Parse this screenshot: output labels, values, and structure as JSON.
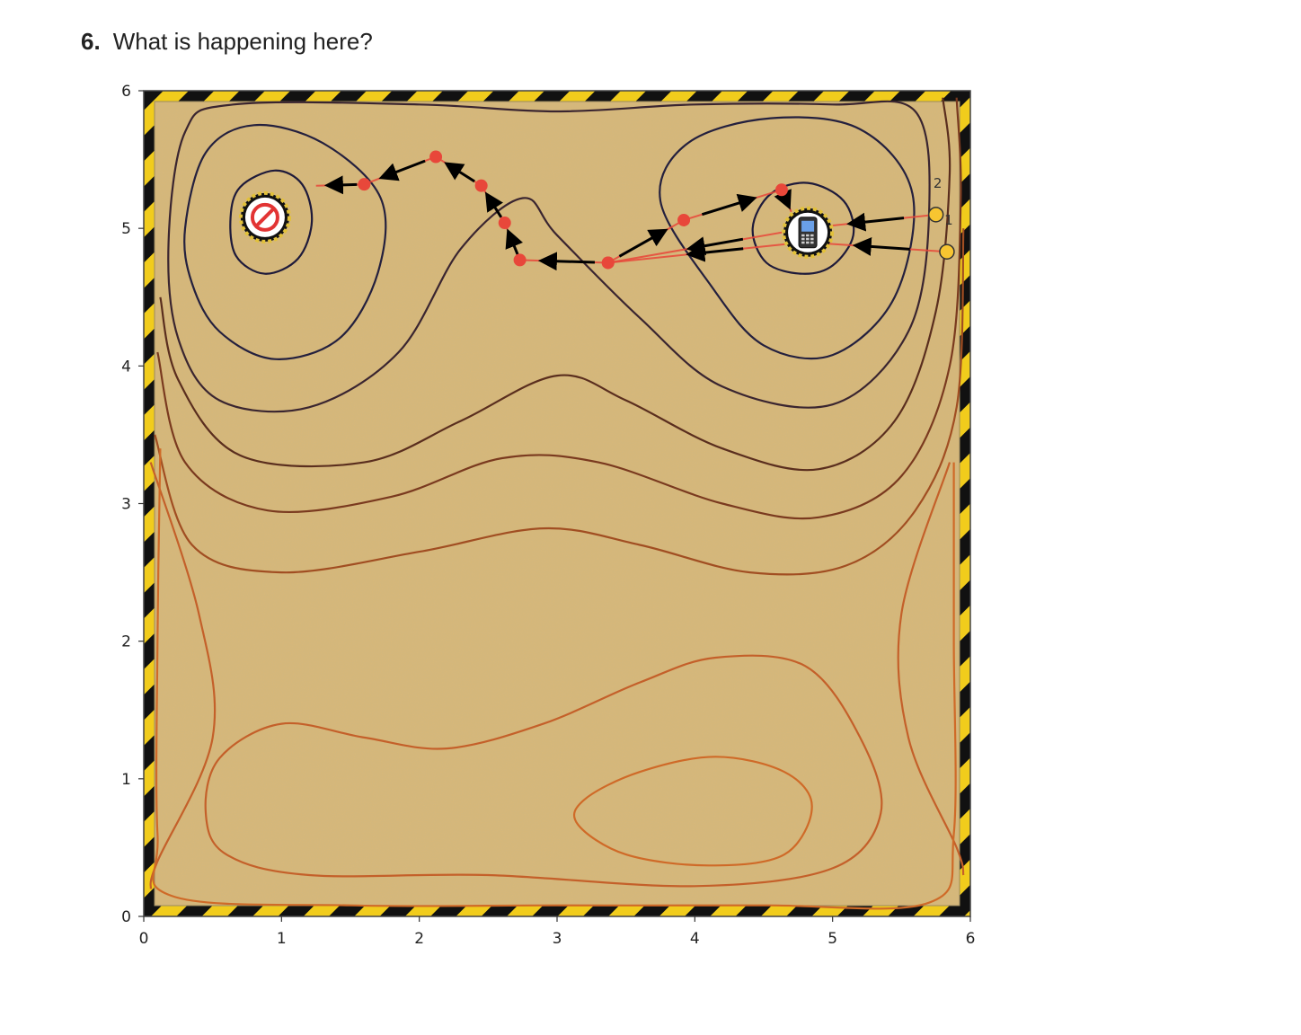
{
  "question": {
    "number": "6.",
    "text": "What is happening here?"
  },
  "chart_data": {
    "type": "contour",
    "title": "",
    "xlabel": "",
    "ylabel": "",
    "xlim": [
      0,
      6
    ],
    "ylim": [
      0,
      6
    ],
    "xticks": [
      "0",
      "1",
      "2",
      "3",
      "4",
      "5",
      "6"
    ],
    "yticks": [
      "0",
      "1",
      "2",
      "3",
      "4",
      "5",
      "6"
    ],
    "background": "sand texture with yellow/black hazard-striped border",
    "colors": {
      "dark": "#1e1a3a",
      "mid": "#5a2e1e",
      "light": "#cf6a28",
      "path": "#e8473a",
      "start": "#f7c531",
      "arrow": "#000000"
    },
    "markers": [
      {
        "name": "no-entry-sign",
        "icon": "no-entry-icon",
        "x": 0.88,
        "y": 5.08
      },
      {
        "name": "mobile-phone",
        "icon": "phone-icon",
        "x": 4.82,
        "y": 4.97
      }
    ],
    "start_points": [
      {
        "label": "2",
        "x": 5.75,
        "y": 5.1
      },
      {
        "label": "1",
        "x": 5.83,
        "y": 4.83
      }
    ],
    "paths": [
      {
        "name": "path-1",
        "points": [
          [
            5.83,
            4.83
          ],
          [
            4.8,
            4.9
          ],
          [
            3.37,
            4.75
          ],
          [
            2.73,
            4.77
          ],
          [
            2.62,
            5.04
          ],
          [
            2.45,
            5.31
          ],
          [
            2.12,
            5.52
          ],
          [
            1.6,
            5.32
          ],
          [
            1.25,
            5.31
          ]
        ]
      },
      {
        "name": "path-2",
        "points": [
          [
            5.75,
            5.1
          ],
          [
            4.8,
            5.0
          ],
          [
            3.37,
            4.75
          ],
          [
            3.92,
            5.06
          ],
          [
            4.63,
            5.28
          ],
          [
            4.7,
            5.12
          ]
        ]
      }
    ],
    "contour_levels": [
      {
        "color": "#1e1a3a",
        "groups": [
          [
            [
              [
                0.63,
                5.08
              ],
              [
                0.7,
                5.3
              ],
              [
                0.95,
                5.42
              ],
              [
                1.15,
                5.32
              ],
              [
                1.22,
                5.05
              ],
              [
                1.12,
                4.78
              ],
              [
                0.88,
                4.67
              ],
              [
                0.67,
                4.8
              ]
            ]
          ],
          [
            [
              [
                4.42,
                5.0
              ],
              [
                4.55,
                5.25
              ],
              [
                4.82,
                5.33
              ],
              [
                5.08,
                5.2
              ],
              [
                5.15,
                4.95
              ],
              [
                5.0,
                4.73
              ],
              [
                4.78,
                4.67
              ],
              [
                4.52,
                4.75
              ]
            ]
          ]
        ]
      },
      {
        "color": "#24203e",
        "groups": [
          [
            [
              [
                0.3,
                5.0
              ],
              [
                0.45,
                5.55
              ],
              [
                0.8,
                5.75
              ],
              [
                1.3,
                5.62
              ],
              [
                1.72,
                5.22
              ],
              [
                1.7,
                4.68
              ],
              [
                1.42,
                4.2
              ],
              [
                0.95,
                4.05
              ],
              [
                0.55,
                4.25
              ],
              [
                0.35,
                4.6
              ]
            ]
          ],
          [
            [
              [
                3.75,
                5.2
              ],
              [
                3.95,
                5.62
              ],
              [
                4.55,
                5.8
              ],
              [
                5.2,
                5.72
              ],
              [
                5.58,
                5.25
              ],
              [
                5.45,
                4.5
              ],
              [
                5.0,
                4.08
              ],
              [
                4.5,
                4.15
              ],
              [
                4.12,
                4.58
              ]
            ]
          ]
        ]
      },
      {
        "color": "#3a2530",
        "groups": [
          [
            [
              [
                0.18,
                4.9
              ],
              [
                0.3,
                5.7
              ],
              [
                0.65,
                5.9
              ],
              [
                2.0,
                5.9
              ],
              [
                3.0,
                5.85
              ],
              [
                4.0,
                5.9
              ],
              [
                5.0,
                5.9
              ],
              [
                5.6,
                5.85
              ],
              [
                5.7,
                5.1
              ],
              [
                5.55,
                4.25
              ],
              [
                5.0,
                3.72
              ],
              [
                4.2,
                3.85
              ],
              [
                3.6,
                4.35
              ],
              [
                3.0,
                4.95
              ],
              [
                2.75,
                5.22
              ],
              [
                2.3,
                4.85
              ],
              [
                1.85,
                4.1
              ],
              [
                1.2,
                3.7
              ],
              [
                0.55,
                3.75
              ],
              [
                0.25,
                4.2
              ]
            ]
          ]
        ]
      },
      {
        "color": "#5a2e1e",
        "groups": [
          [
            [
              [
                0.12,
                4.5
              ],
              [
                0.25,
                3.9
              ],
              [
                0.7,
                3.35
              ],
              [
                1.6,
                3.3
              ],
              [
                2.3,
                3.6
              ],
              [
                3.0,
                3.93
              ],
              [
                3.5,
                3.75
              ],
              [
                4.2,
                3.4
              ],
              [
                4.9,
                3.25
              ],
              [
                5.45,
                3.6
              ],
              [
                5.75,
                4.4
              ],
              [
                5.85,
                5.4
              ],
              [
                5.8,
                5.95
              ]
            ]
          ]
        ]
      },
      {
        "color": "#7a3a1f",
        "groups": [
          [
            [
              [
                0.1,
                4.1
              ],
              [
                0.3,
                3.3
              ],
              [
                0.9,
                2.95
              ],
              [
                1.8,
                3.05
              ],
              [
                2.6,
                3.33
              ],
              [
                3.3,
                3.3
              ],
              [
                4.2,
                3.0
              ],
              [
                4.9,
                2.9
              ],
              [
                5.5,
                3.2
              ],
              [
                5.85,
                4.0
              ],
              [
                5.93,
                5.2
              ],
              [
                5.9,
                5.95
              ]
            ]
          ]
        ]
      },
      {
        "color": "#a14e22",
        "groups": [
          [
            [
              [
                0.08,
                3.5
              ],
              [
                0.35,
                2.7
              ],
              [
                1.0,
                2.5
              ],
              [
                2.0,
                2.65
              ],
              [
                2.9,
                2.82
              ],
              [
                3.6,
                2.7
              ],
              [
                4.4,
                2.5
              ],
              [
                5.1,
                2.55
              ],
              [
                5.6,
                2.95
              ],
              [
                5.9,
                3.7
              ],
              [
                5.95,
                5.0
              ]
            ]
          ]
        ]
      },
      {
        "color": "#c4602a",
        "groups": [
          [
            [
              [
                0.05,
                3.3
              ],
              [
                0.4,
                2.2
              ],
              [
                0.5,
                1.3
              ],
              [
                0.1,
                0.4
              ],
              [
                0.05,
                0.2
              ]
            ]
          ],
          [
            [
              [
                5.85,
                3.3
              ],
              [
                5.5,
                2.2
              ],
              [
                5.55,
                1.3
              ],
              [
                5.9,
                0.5
              ],
              [
                5.95,
                0.3
              ]
            ]
          ],
          [
            [
              [
                0.45,
                0.75
              ],
              [
                0.55,
                1.15
              ],
              [
                1.0,
                1.4
              ],
              [
                1.6,
                1.3
              ],
              [
                2.2,
                1.22
              ],
              [
                2.9,
                1.4
              ],
              [
                3.6,
                1.7
              ],
              [
                4.15,
                1.88
              ],
              [
                4.8,
                1.82
              ],
              [
                5.2,
                1.3
              ],
              [
                5.35,
                0.75
              ],
              [
                5.0,
                0.35
              ],
              [
                4.0,
                0.22
              ],
              [
                2.5,
                0.3
              ],
              [
                1.2,
                0.3
              ],
              [
                0.6,
                0.45
              ]
            ]
          ]
        ]
      },
      {
        "color": "#cf6a28",
        "groups": [
          [
            [
              [
                3.15,
                0.67
              ],
              [
                3.2,
                0.85
              ],
              [
                3.6,
                1.05
              ],
              [
                4.15,
                1.16
              ],
              [
                4.65,
                1.05
              ],
              [
                4.85,
                0.8
              ],
              [
                4.65,
                0.45
              ],
              [
                4.1,
                0.37
              ],
              [
                3.5,
                0.45
              ]
            ]
          ],
          [
            [
              [
                0.12,
                3.4
              ],
              [
                0.1,
                2.0
              ],
              [
                0.1,
                0.6
              ],
              [
                0.2,
                0.15
              ],
              [
                1.5,
                0.08
              ],
              [
                3.0,
                0.08
              ],
              [
                4.5,
                0.08
              ],
              [
                5.7,
                0.1
              ],
              [
                5.88,
                0.6
              ],
              [
                5.88,
                2.0
              ],
              [
                5.88,
                3.3
              ]
            ]
          ]
        ]
      }
    ]
  }
}
